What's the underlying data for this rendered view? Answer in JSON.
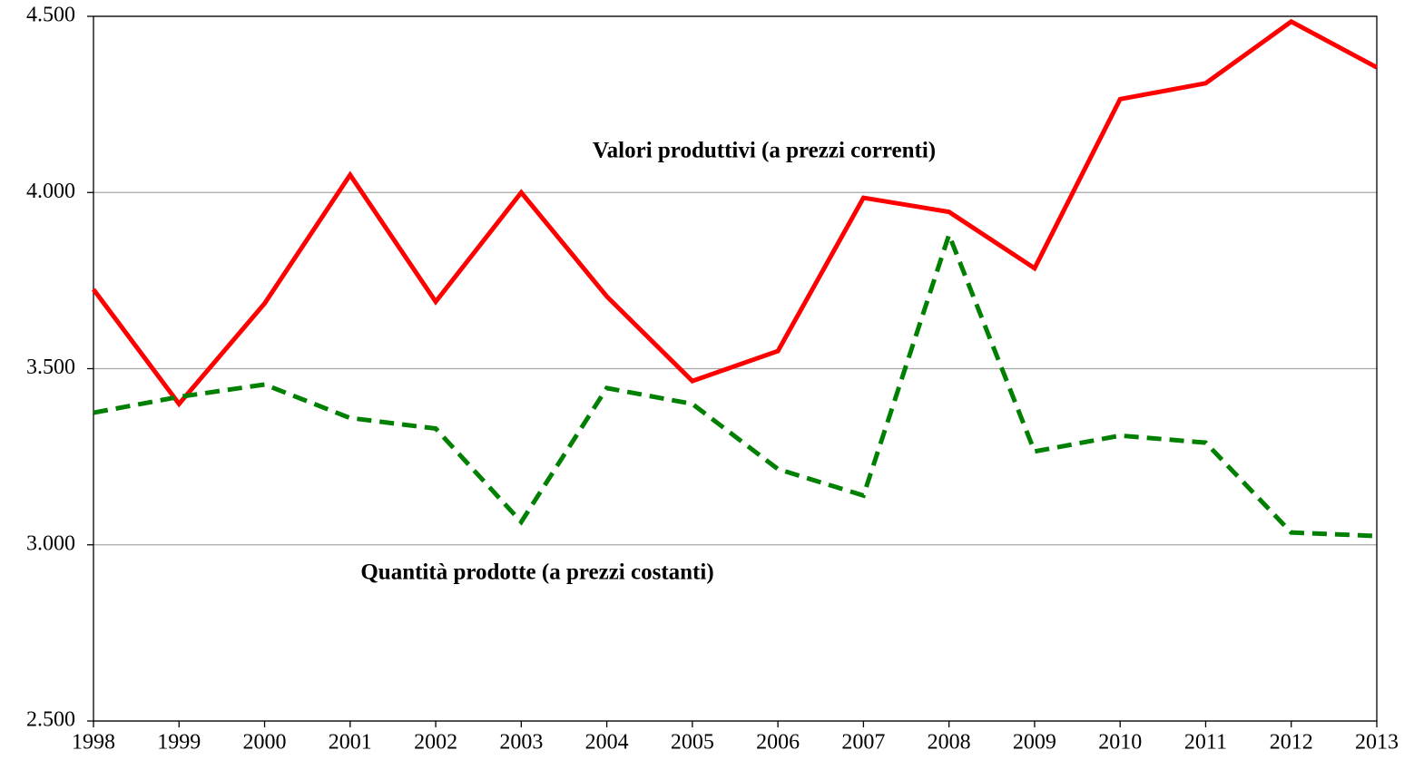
{
  "chart_data": {
    "type": "line",
    "x": [
      1998,
      1999,
      2000,
      2001,
      2002,
      2003,
      2004,
      2005,
      2006,
      2007,
      2008,
      2009,
      2010,
      2011,
      2012,
      2013
    ],
    "xlim": [
      1998,
      2013
    ],
    "xticks": [
      1998,
      1999,
      2000,
      2001,
      2002,
      2003,
      2004,
      2005,
      2006,
      2007,
      2008,
      2009,
      2010,
      2011,
      2012,
      2013
    ],
    "ylim": [
      2500,
      4500
    ],
    "yticks": [
      {
        "value": 2500,
        "label": "2.500"
      },
      {
        "value": 3000,
        "label": "3.000"
      },
      {
        "value": 3500,
        "label": "3.500"
      },
      {
        "value": 4000,
        "label": "4.000"
      },
      {
        "value": 4500,
        "label": "4.500"
      }
    ],
    "grid": true,
    "series": [
      {
        "name": "Valori produttivi (a prezzi correnti)",
        "color": "#ff0000",
        "style": "solid",
        "values": [
          3725,
          3400,
          3685,
          4050,
          3690,
          4000,
          3705,
          3465,
          3550,
          3985,
          3945,
          3785,
          4265,
          4310,
          4485,
          4355
        ]
      },
      {
        "name": "Quantità prodotte (a prezzi costanti)",
        "color": "#008000",
        "style": "dashed",
        "values": [
          3375,
          3420,
          3455,
          3360,
          3330,
          3065,
          3445,
          3400,
          3215,
          3140,
          3880,
          3265,
          3310,
          3290,
          3035,
          3025
        ]
      }
    ]
  }
}
